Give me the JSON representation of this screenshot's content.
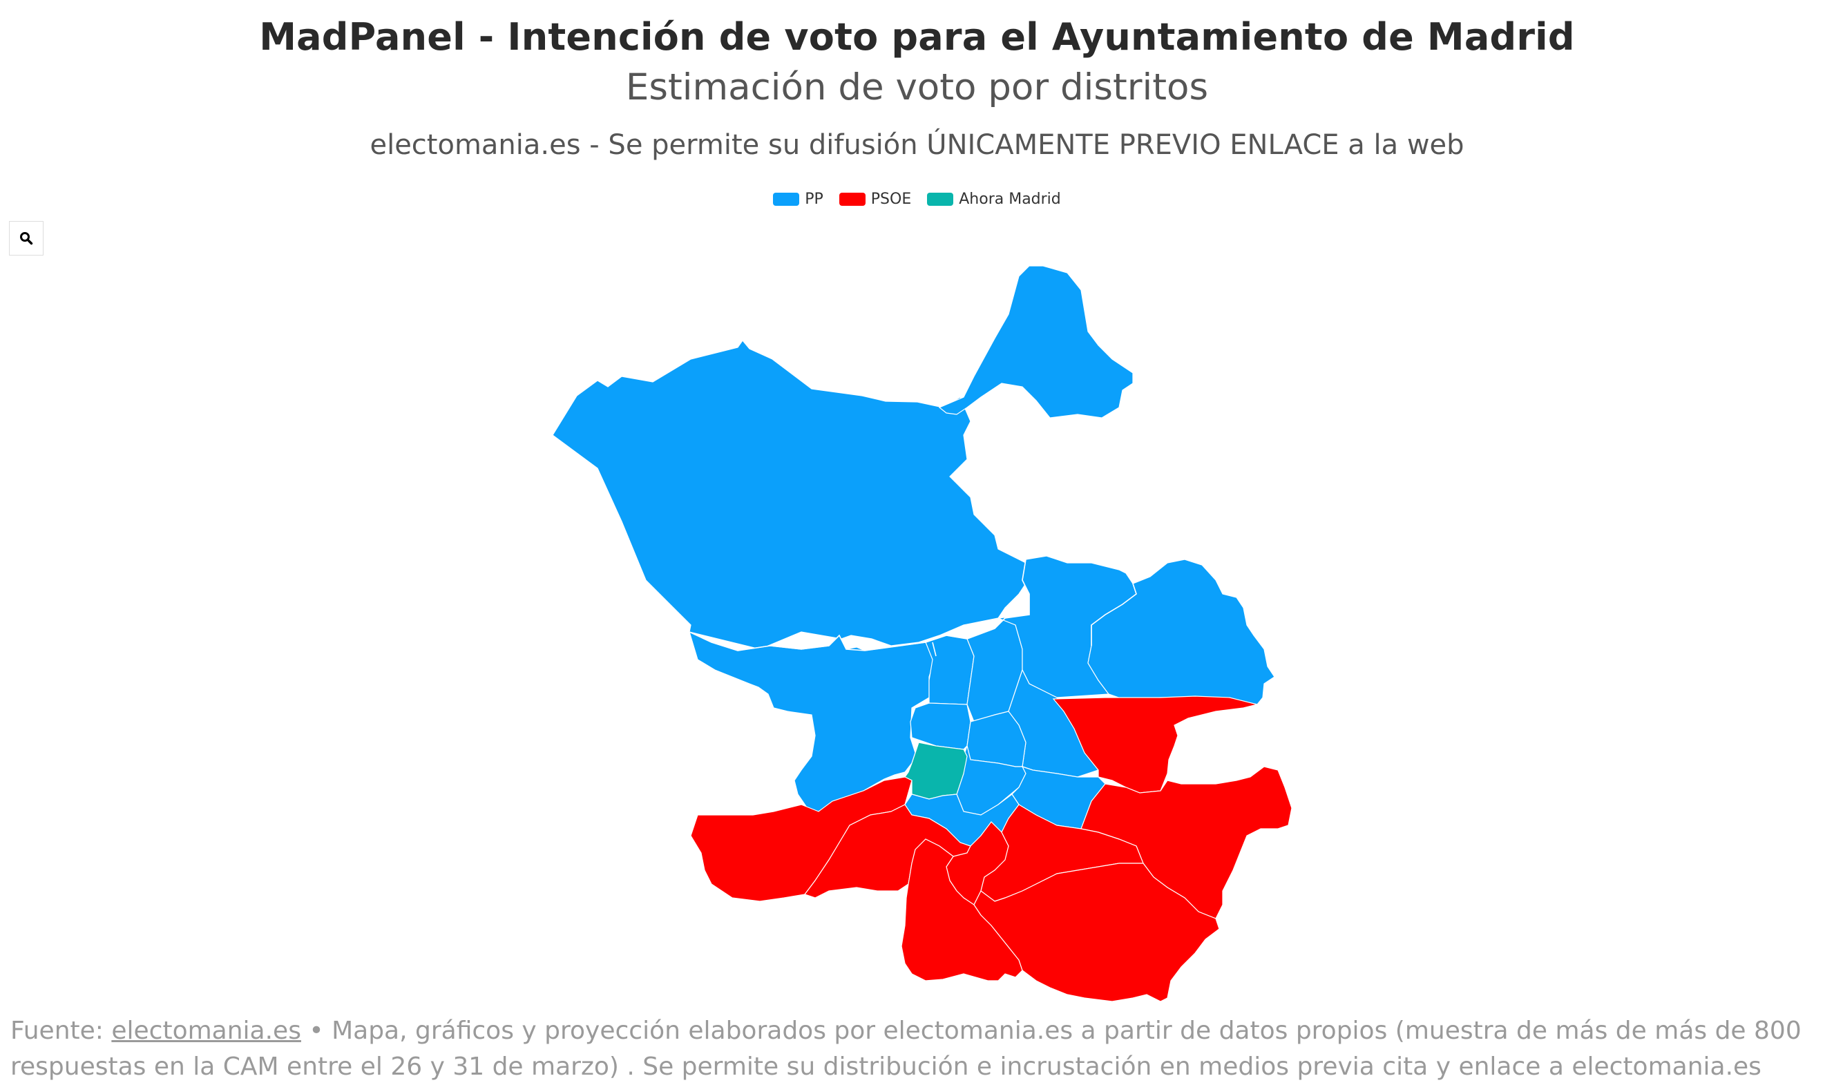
{
  "header": {
    "title": "MadPanel - Intención de voto para el Ayuntamiento de Madrid",
    "subtitle": "Estimación de voto por distritos",
    "note": "electomania.es - Se permite su difusión ÚNICAMENTE PREVIO ENLACE a la web"
  },
  "legend": [
    {
      "label": "PP",
      "color": "#0ba0fb"
    },
    {
      "label": "PSOE",
      "color": "#fe0000"
    },
    {
      "label": "Ahora Madrid",
      "color": "#09b5ac"
    }
  ],
  "controls": {
    "zoom_icon": "search-icon"
  },
  "map": {
    "region": "Madrid",
    "districts": [
      {
        "id": "fuencarral",
        "winner": "PP"
      },
      {
        "id": "barajas",
        "winner": "PP"
      },
      {
        "id": "hortaleza",
        "winner": "PP"
      },
      {
        "id": "moncloa",
        "winner": "PP"
      },
      {
        "id": "tetuan",
        "winner": "PP"
      },
      {
        "id": "chamartin",
        "winner": "PP"
      },
      {
        "id": "chamberi",
        "winner": "PP"
      },
      {
        "id": "salamanca",
        "winner": "PP"
      },
      {
        "id": "ciudad-lineal",
        "winner": "PP"
      },
      {
        "id": "san-blas",
        "winner": "PSOE"
      },
      {
        "id": "centro",
        "winner": "Ahora Madrid"
      },
      {
        "id": "retiro",
        "winner": "PP"
      },
      {
        "id": "moratalaz",
        "winner": "PP"
      },
      {
        "id": "arganzuela",
        "winner": "PP"
      },
      {
        "id": "latina",
        "winner": "PSOE"
      },
      {
        "id": "carabanchel",
        "winner": "PSOE"
      },
      {
        "id": "usera",
        "winner": "PSOE"
      },
      {
        "id": "puente-de-vallecas",
        "winner": "PSOE"
      },
      {
        "id": "villaverde",
        "winner": "PSOE"
      },
      {
        "id": "villa-de-vallecas",
        "winner": "PSOE"
      },
      {
        "id": "vicalvaro",
        "winner": "PSOE"
      }
    ]
  },
  "footer": {
    "prefix": "Fuente: ",
    "link_text": "electomania.es",
    "bullet": " • ",
    "text": "Mapa, gráficos y proyección elaborados por electomania.es a partir de datos propios (muestra de más de más de 800 respuestas en la CAM entre el 26 y 31 de marzo) . Se permite su distribución e incrustación en medios previa cita y enlace a electomania.es"
  }
}
